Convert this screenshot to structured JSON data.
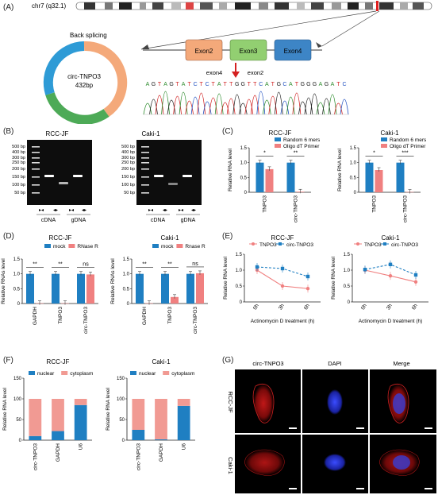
{
  "panel_labels": {
    "A": "(A)",
    "B": "(B)",
    "C": "(C)",
    "D": "(D)",
    "E": "(E)",
    "F": "(F)",
    "G": "(G)"
  },
  "panelA": {
    "chrom_label": "chr7 (q32.1)",
    "back_splicing": "Back splicing",
    "circ_name": "circ-TNPO3",
    "circ_len": "432bp",
    "exons": [
      "Exon2",
      "Exon3",
      "Exon4"
    ],
    "junction_left": "exon4",
    "junction_right": "exon2",
    "sequence": [
      "A",
      "G",
      "T",
      "A",
      "G",
      "T",
      "A",
      "T",
      "C",
      "T",
      "C",
      "T",
      "A",
      "T",
      "T",
      "G",
      "G",
      "T",
      "T",
      "C",
      "A",
      "T",
      "G",
      "C",
      "A",
      "T",
      "G",
      "G",
      "G",
      "A",
      "G",
      "A",
      "T",
      "C"
    ],
    "ring_colors": {
      "top": "#f4a97a",
      "left": "#2e9bd6",
      "bottom": "#4daa57"
    },
    "exon_colors": [
      "#f4a97a",
      "#92cf71",
      "#3d85c6"
    ]
  },
  "panelB": {
    "gels": [
      {
        "title": "RCC-JF"
      },
      {
        "title": "Caki-1"
      }
    ],
    "ladder": [
      "500 bp",
      "400 bp",
      "300 bp",
      "250 bp",
      "200 bp",
      "150 bp",
      "100 bp",
      "50 bp"
    ],
    "lane_groups": [
      "cDNA",
      "gDNA"
    ]
  },
  "colors": {
    "blue": "#1f7fc2",
    "red": "#f08080",
    "pink": "#f19a93",
    "dark": "#333333"
  },
  "chart_data": [
    {
      "id": "C1",
      "type": "bar",
      "title": "RCC-JF",
      "ylabel": "Relative RNA level",
      "categories": [
        "TNPO3",
        "circ-TNPO3"
      ],
      "ylim": [
        0,
        1.5
      ],
      "yticks": [
        0,
        0.5,
        1.0,
        1.5
      ],
      "series": [
        {
          "name": "Random 6 mers",
          "values": [
            1.0,
            1.0
          ]
        },
        {
          "name": "Oligo dT Primer",
          "values": [
            0.78,
            0.02
          ]
        }
      ],
      "significance": [
        "*",
        "**"
      ]
    },
    {
      "id": "C2",
      "type": "bar",
      "title": "Caki-1",
      "ylabel": "Relative RNA level",
      "categories": [
        "TNPO3",
        "circ-TNPO3"
      ],
      "ylim": [
        0,
        1.5
      ],
      "yticks": [
        0,
        0.5,
        1.0,
        1.5
      ],
      "series": [
        {
          "name": "Random 6 mers",
          "values": [
            1.0,
            1.0
          ]
        },
        {
          "name": "Oligo dT Primer",
          "values": [
            0.75,
            0.01
          ]
        }
      ],
      "significance": [
        "*",
        "***"
      ]
    },
    {
      "id": "D1",
      "type": "bar",
      "title": "RCC-JF",
      "ylabel": "Relative RNAs level",
      "categories": [
        "GAPDH",
        "TNPO3",
        "circ-TNPO3"
      ],
      "ylim": [
        0,
        1.5
      ],
      "yticks": [
        0,
        0.5,
        1.0,
        1.5
      ],
      "series": [
        {
          "name": "mock",
          "values": [
            1.0,
            1.0,
            1.0
          ]
        },
        {
          "name": "RNase R",
          "values": [
            0.01,
            0.01,
            0.98
          ]
        }
      ],
      "significance": [
        "**",
        "**",
        "ns"
      ]
    },
    {
      "id": "D2",
      "type": "bar",
      "title": "Caki-1",
      "ylabel": "Relative RNAs level",
      "categories": [
        "GAPDH",
        "TNPO3",
        "circ-TNPO3"
      ],
      "ylim": [
        0,
        1.5
      ],
      "yticks": [
        0,
        0.5,
        1.0,
        1.5
      ],
      "series": [
        {
          "name": "mock",
          "values": [
            1.0,
            1.0,
            1.0
          ]
        },
        {
          "name": "Rnase R",
          "values": [
            0.01,
            0.22,
            1.02
          ]
        }
      ],
      "significance": [
        "**",
        "**",
        "ns"
      ]
    },
    {
      "id": "E1",
      "type": "line",
      "title": "RCC-JF",
      "ylabel": "Relative RNA level",
      "xlabel": "Actinomycin D treatment (h)",
      "categories": [
        "0h",
        "3h",
        "6h"
      ],
      "ylim": [
        0,
        1.5
      ],
      "yticks": [
        0,
        0.5,
        1.0,
        1.5
      ],
      "series": [
        {
          "name": "TNPO3",
          "values": [
            1.0,
            0.5,
            0.42
          ]
        },
        {
          "name": "circ-TNPO3",
          "values": [
            1.1,
            1.05,
            0.8
          ]
        }
      ]
    },
    {
      "id": "E2",
      "type": "line",
      "title": "Caki-1",
      "ylabel": "Relative RNA level",
      "xlabel": "Actinomycin D treatment (h)",
      "categories": [
        "0h",
        "3h",
        "6h"
      ],
      "ylim": [
        0,
        1.5
      ],
      "yticks": [
        0,
        0.5,
        1.0,
        1.5
      ],
      "series": [
        {
          "name": "TNPO3",
          "values": [
            1.0,
            0.82,
            0.63
          ]
        },
        {
          "name": "circ-TNPO3",
          "values": [
            1.02,
            1.18,
            0.85
          ]
        }
      ]
    },
    {
      "id": "F1",
      "type": "bar",
      "title": "RCC-JF",
      "ylabel": "Relative RNA level",
      "categories": [
        "circ-TNPO3",
        "GAPDH",
        "U6"
      ],
      "ylim": [
        0,
        150
      ],
      "yticks": [
        0,
        50,
        100,
        150
      ],
      "series": [
        {
          "name": "nuclear",
          "values": [
            10,
            22,
            85
          ]
        },
        {
          "name": "cytoplasm",
          "values": [
            90,
            78,
            15
          ]
        }
      ]
    },
    {
      "id": "F2",
      "type": "bar",
      "title": "Caki-1",
      "ylabel": "Relative RNA level",
      "categories": [
        "circ-TNPO3",
        "GAPDH",
        "U6"
      ],
      "ylim": [
        0,
        150
      ],
      "yticks": [
        0,
        50,
        100,
        150
      ],
      "series": [
        {
          "name": "nuclear",
          "values": [
            25,
            2,
            83
          ]
        },
        {
          "name": "cytoplasm",
          "values": [
            75,
            98,
            17
          ]
        }
      ]
    }
  ],
  "panelG": {
    "columns": [
      "circ-TNPO3",
      "DAPI",
      "Merge"
    ],
    "rows": [
      "RCC-JF",
      "Caki-1"
    ]
  }
}
